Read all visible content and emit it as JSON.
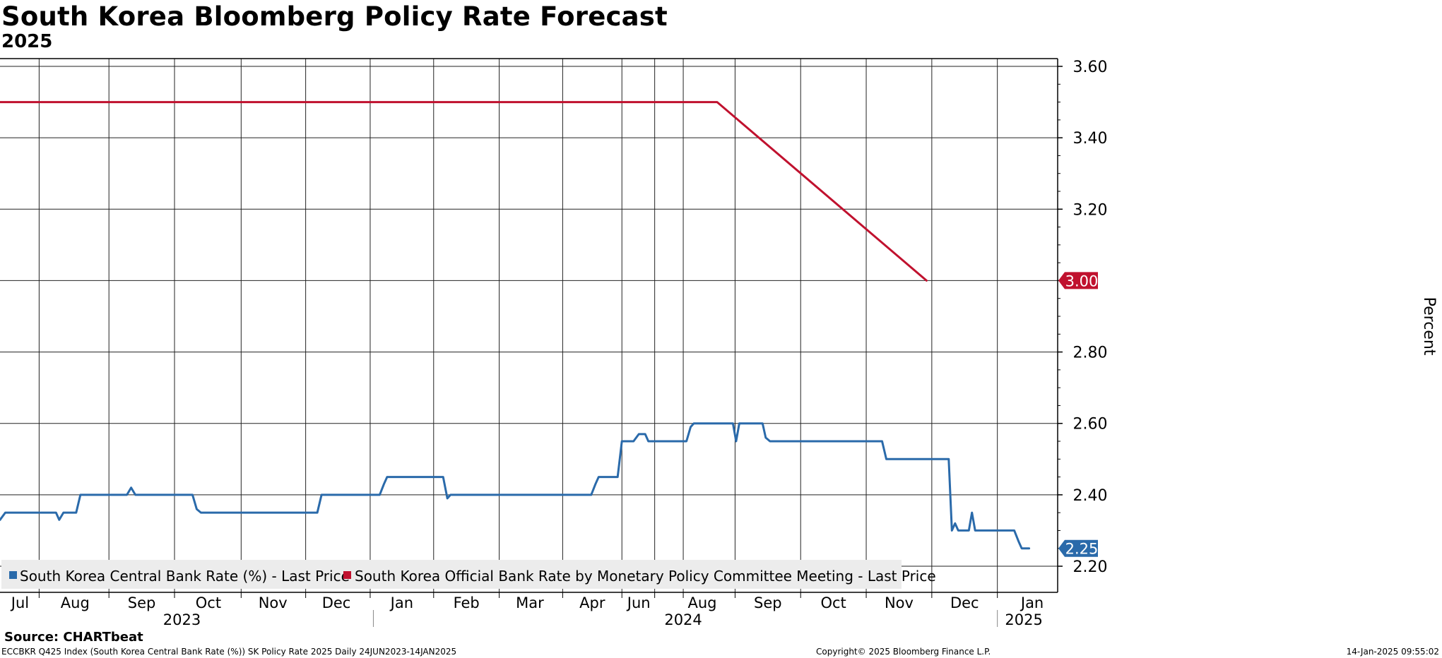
{
  "title": "South Korea Bloomberg Policy Rate Forecast",
  "subtitle": "2025",
  "source": "Source: CHARTbeat",
  "footer": {
    "left": "ECCBKR Q425 Index (South Korea Central Bank Rate (%)) SK Policy Rate 2025  Daily 24JUN2023-14JAN2025",
    "center": "Copyright© 2025 Bloomberg Finance L.P.",
    "right": "14-Jan-2025 09:55:02"
  },
  "chart_data": {
    "type": "line",
    "title": "South Korea Bloomberg Policy Rate Forecast",
    "subtitle": "2025",
    "ylabel": "Percent",
    "ylim": [
      2.125,
      3.625
    ],
    "y_ticks": [
      "3.60",
      "3.40",
      "3.20",
      "3.00",
      "2.80",
      "2.60",
      "2.40",
      "2.20"
    ],
    "y_tick_values": [
      3.6,
      3.4,
      3.2,
      3.0,
      2.8,
      2.6,
      2.4,
      2.2
    ],
    "x_domain": [
      0,
      100
    ],
    "x_ticks": [
      "Jul",
      "Aug",
      "Sep",
      "Oct",
      "Nov",
      "Dec",
      "Jan",
      "Feb",
      "Mar",
      "Apr",
      "Jun",
      "Aug",
      "Sep",
      "Oct",
      "Nov",
      "Dec",
      "Jan"
    ],
    "x_tick_positions": [
      1.9,
      7.1,
      13.4,
      19.7,
      25.8,
      31.8,
      38.0,
      44.1,
      50.1,
      56.0,
      60.4,
      66.4,
      72.6,
      78.8,
      85.0,
      91.2,
      97.6
    ],
    "year_labels": [
      "2023",
      "2024",
      "2025"
    ],
    "year_label_positions": [
      17.2,
      64.6,
      96.8
    ],
    "grid": true,
    "legend_position": "bottom-left",
    "series": [
      {
        "name": "South Korea Central Bank Rate (%) - Last Price",
        "color": "#2a6aaa",
        "last_value_label": "2.25",
        "points": [
          [
            0,
            2.33
          ],
          [
            0.5,
            2.35
          ],
          [
            5.3,
            2.35
          ],
          [
            5.6,
            2.33
          ],
          [
            6.0,
            2.35
          ],
          [
            7.2,
            2.35
          ],
          [
            7.6,
            2.4
          ],
          [
            12.0,
            2.4
          ],
          [
            12.4,
            2.42
          ],
          [
            12.8,
            2.4
          ],
          [
            18.2,
            2.4
          ],
          [
            18.6,
            2.36
          ],
          [
            19.0,
            2.35
          ],
          [
            30.0,
            2.35
          ],
          [
            30.4,
            2.4
          ],
          [
            35.9,
            2.4
          ],
          [
            36.3,
            2.43
          ],
          [
            36.6,
            2.45
          ],
          [
            41.9,
            2.45
          ],
          [
            42.3,
            2.39
          ],
          [
            42.6,
            2.4
          ],
          [
            55.9,
            2.4
          ],
          [
            56.3,
            2.43
          ],
          [
            56.6,
            2.45
          ],
          [
            58.4,
            2.45
          ],
          [
            58.8,
            2.55
          ],
          [
            59.9,
            2.55
          ],
          [
            60.4,
            2.57
          ],
          [
            61.0,
            2.57
          ],
          [
            61.3,
            2.55
          ],
          [
            64.9,
            2.55
          ],
          [
            65.3,
            2.59
          ],
          [
            65.6,
            2.6
          ],
          [
            69.3,
            2.6
          ],
          [
            69.6,
            2.55
          ],
          [
            69.9,
            2.6
          ],
          [
            72.1,
            2.6
          ],
          [
            72.4,
            2.56
          ],
          [
            72.8,
            2.55
          ],
          [
            83.4,
            2.55
          ],
          [
            83.8,
            2.5
          ],
          [
            89.7,
            2.5
          ],
          [
            90.0,
            2.3
          ],
          [
            90.3,
            2.32
          ],
          [
            90.6,
            2.3
          ],
          [
            91.6,
            2.3
          ],
          [
            91.9,
            2.35
          ],
          [
            92.2,
            2.3
          ],
          [
            95.9,
            2.3
          ],
          [
            96.3,
            2.27
          ],
          [
            96.6,
            2.25
          ],
          [
            97.3,
            2.25
          ]
        ]
      },
      {
        "name": "South Korea Official Bank Rate by Monetary Policy Committee Meeting - Last Price",
        "color": "#c0112e",
        "last_value_label": "3.00",
        "points": [
          [
            0,
            3.5
          ],
          [
            67.8,
            3.5
          ],
          [
            87.6,
            3.0
          ]
        ]
      }
    ]
  }
}
